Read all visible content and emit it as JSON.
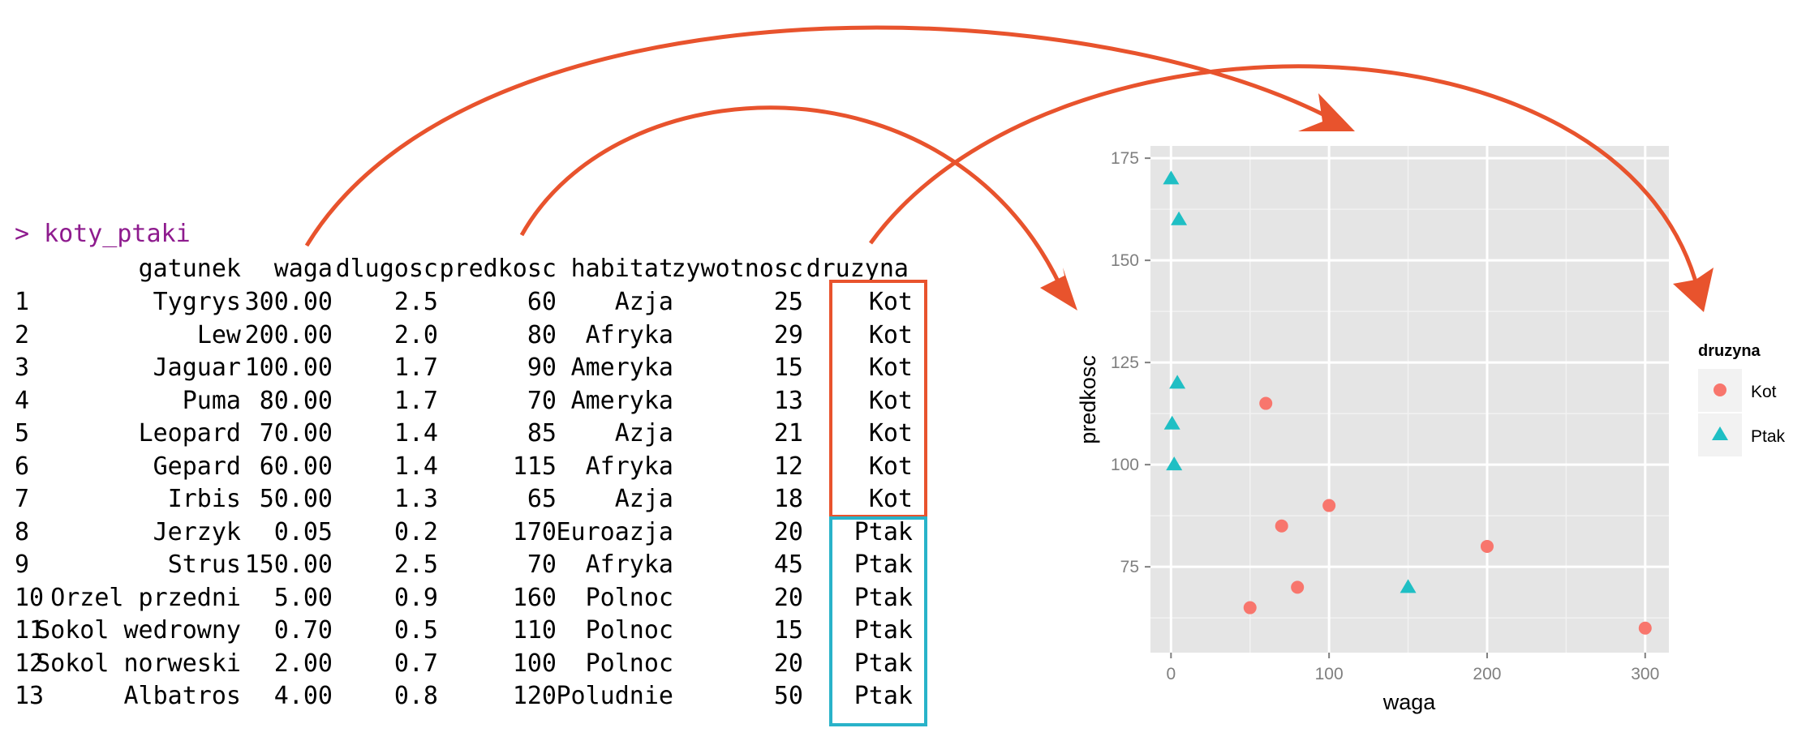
{
  "console": {
    "prompt_symbol": ">",
    "command": "koty_ptaki",
    "columns": [
      "gatunek",
      "waga",
      "dlugosc",
      "predkosc",
      "habitat",
      "zywotnosc",
      "druzyna"
    ],
    "rows": [
      [
        "1",
        "Tygrys",
        "300.00",
        "2.5",
        "60",
        "Azja",
        "25",
        "Kot"
      ],
      [
        "2",
        "Lew",
        "200.00",
        "2.0",
        "80",
        "Afryka",
        "29",
        "Kot"
      ],
      [
        "3",
        "Jaguar",
        "100.00",
        "1.7",
        "90",
        "Ameryka",
        "15",
        "Kot"
      ],
      [
        "4",
        "Puma",
        "80.00",
        "1.7",
        "70",
        "Ameryka",
        "13",
        "Kot"
      ],
      [
        "5",
        "Leopard",
        "70.00",
        "1.4",
        "85",
        "Azja",
        "21",
        "Kot"
      ],
      [
        "6",
        "Gepard",
        "60.00",
        "1.4",
        "115",
        "Afryka",
        "12",
        "Kot"
      ],
      [
        "7",
        "Irbis",
        "50.00",
        "1.3",
        "65",
        "Azja",
        "18",
        "Kot"
      ],
      [
        "8",
        "Jerzyk",
        "0.05",
        "0.2",
        "170",
        "Euroazja",
        "20",
        "Ptak"
      ],
      [
        "9",
        "Strus",
        "150.00",
        "2.5",
        "70",
        "Afryka",
        "45",
        "Ptak"
      ],
      [
        "10",
        "Orzel przedni",
        "5.00",
        "0.9",
        "160",
        "Polnoc",
        "20",
        "Ptak"
      ],
      [
        "11",
        "Sokol wedrowny",
        "0.70",
        "0.5",
        "110",
        "Polnoc",
        "15",
        "Ptak"
      ],
      [
        "12",
        "Sokol norweski",
        "2.00",
        "0.7",
        "100",
        "Polnoc",
        "20",
        "Ptak"
      ],
      [
        "13",
        "Albatros",
        "4.00",
        "0.8",
        "120",
        "Poludnie",
        "50",
        "Ptak"
      ]
    ]
  },
  "colors": {
    "prompt": "#8e1b8e",
    "arrow": "#e8532d",
    "box_kot": "#e8532d",
    "box_ptak": "#29b3c9",
    "kot_point": "#f8766d",
    "ptak_point": "#1fbfc4",
    "panel_bg": "#e5e5e5",
    "grid": "#ffffff"
  },
  "chart_data": {
    "type": "scatter",
    "xlabel": "waga",
    "ylabel": "predkosc",
    "xlim": [
      -13,
      315
    ],
    "ylim": [
      54,
      178
    ],
    "x_ticks": [
      0,
      100,
      200,
      300
    ],
    "y_ticks": [
      75,
      100,
      125,
      150,
      175
    ],
    "grid": true,
    "legend": {
      "title": "druzyna",
      "position": "right"
    },
    "series": [
      {
        "name": "Kot",
        "shape": "circle",
        "points": [
          [
            300,
            60
          ],
          [
            200,
            80
          ],
          [
            100,
            90
          ],
          [
            80,
            70
          ],
          [
            70,
            85
          ],
          [
            60,
            115
          ],
          [
            50,
            65
          ]
        ]
      },
      {
        "name": "Ptak",
        "shape": "triangle",
        "points": [
          [
            0.05,
            170
          ],
          [
            150,
            70
          ],
          [
            5,
            160
          ],
          [
            0.7,
            110
          ],
          [
            2,
            100
          ],
          [
            4,
            120
          ]
        ]
      }
    ]
  }
}
